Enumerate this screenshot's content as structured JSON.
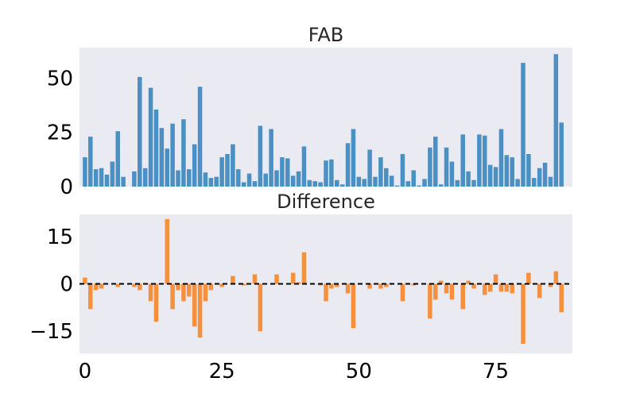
{
  "colors": {
    "fab": "#4a90c2",
    "difference": "#f5913e",
    "panel_background": "#eaeaf2",
    "zero_line": "#000000"
  },
  "chart_data": [
    {
      "type": "bar",
      "title": "FAB",
      "xlim": [
        -1,
        89
      ],
      "ylim": [
        0,
        64
      ],
      "yticks": [
        {
          "value": 0,
          "label": "0"
        },
        {
          "value": 25,
          "label": "25"
        },
        {
          "value": 50,
          "label": "50"
        }
      ],
      "xtick_labels_shown": false,
      "grid": false,
      "x": [
        0,
        1,
        2,
        3,
        4,
        5,
        6,
        7,
        8,
        9,
        10,
        11,
        12,
        13,
        14,
        15,
        16,
        17,
        18,
        19,
        20,
        21,
        22,
        23,
        24,
        25,
        26,
        27,
        28,
        29,
        30,
        31,
        32,
        33,
        34,
        35,
        36,
        37,
        38,
        39,
        40,
        41,
        42,
        43,
        44,
        45,
        46,
        47,
        48,
        49,
        50,
        51,
        52,
        53,
        54,
        55,
        56,
        57,
        58,
        59,
        60,
        61,
        62,
        63,
        64,
        65,
        66,
        67,
        68,
        69,
        70,
        71,
        72,
        73,
        74,
        75,
        76,
        77,
        78,
        79,
        80,
        81,
        82,
        83,
        84,
        85,
        86,
        87,
        88
      ],
      "values": [
        13.5,
        23,
        8,
        8.5,
        5.5,
        11.5,
        25.5,
        4.5,
        0,
        7,
        50.5,
        8.5,
        45.5,
        35.5,
        27,
        17.5,
        29,
        7.5,
        31,
        8,
        19.5,
        46,
        6.5,
        4,
        4.5,
        13.5,
        15,
        19.5,
        8,
        2,
        6,
        2.5,
        28,
        6,
        26.5,
        7.5,
        13.5,
        13,
        5,
        7,
        18.5,
        3,
        2.5,
        2,
        12,
        12.5,
        3,
        1,
        20,
        26.5,
        4.5,
        3.5,
        17,
        4.5,
        13.5,
        8.5,
        5,
        0.5,
        15,
        2.5,
        7.5,
        0.5,
        3.5,
        18,
        23,
        1,
        18,
        11.5,
        3,
        24,
        7,
        3,
        24,
        23.5,
        10,
        9,
        26.5,
        14.5,
        13.5,
        3.5,
        57,
        15,
        4,
        8.5,
        11,
        4.5,
        61,
        29.5,
        0
      ]
    },
    {
      "type": "bar",
      "title": "Difference",
      "xlim": [
        -1,
        89
      ],
      "ylim": [
        -22,
        22
      ],
      "yticks": [
        {
          "value": -15,
          "label": "−15"
        },
        {
          "value": 0,
          "label": "0"
        },
        {
          "value": 15,
          "label": "15"
        }
      ],
      "xticks": [
        {
          "value": 0,
          "label": "0"
        },
        {
          "value": 25,
          "label": "25"
        },
        {
          "value": 50,
          "label": "50"
        },
        {
          "value": 75,
          "label": "75"
        }
      ],
      "reference_line": {
        "y": 0,
        "style": "dashed"
      },
      "grid": false,
      "x": [
        0,
        1,
        2,
        3,
        4,
        5,
        6,
        7,
        8,
        9,
        10,
        11,
        12,
        13,
        14,
        15,
        16,
        17,
        18,
        19,
        20,
        21,
        22,
        23,
        24,
        25,
        26,
        27,
        28,
        29,
        30,
        31,
        32,
        33,
        34,
        35,
        36,
        37,
        38,
        39,
        40,
        41,
        42,
        43,
        44,
        45,
        46,
        47,
        48,
        49,
        50,
        51,
        52,
        53,
        54,
        55,
        56,
        57,
        58,
        59,
        60,
        61,
        62,
        63,
        64,
        65,
        66,
        67,
        68,
        69,
        70,
        71,
        72,
        73,
        74,
        75,
        76,
        77,
        78,
        79,
        80,
        81,
        82,
        83,
        84,
        85,
        86,
        87,
        88
      ],
      "values": [
        2,
        -8,
        -2,
        -1.5,
        0,
        0,
        -1,
        0,
        0,
        -1,
        -2,
        0,
        -5.5,
        -12,
        0,
        20.5,
        -8,
        -2,
        -5.5,
        -4,
        -13.5,
        -17,
        -5.5,
        -2,
        0,
        -1,
        0,
        2.5,
        0,
        -0.5,
        0,
        3,
        -15,
        0,
        0,
        3,
        0,
        0,
        3.5,
        0.5,
        10,
        0,
        0,
        -0.5,
        -5.5,
        -1.5,
        -1,
        0,
        -3,
        -14,
        0,
        0,
        -1.5,
        0,
        -1.5,
        -1,
        0,
        0,
        -5.5,
        0,
        -0.5,
        0,
        0,
        -11,
        -5,
        1,
        -3,
        -5,
        0,
        -8,
        1,
        -1.5,
        0,
        -3.5,
        -2.5,
        3,
        -2.5,
        -2.5,
        -3,
        0,
        -19,
        3.5,
        0,
        -4.5,
        0,
        -1,
        4,
        -9,
        0
      ]
    }
  ]
}
